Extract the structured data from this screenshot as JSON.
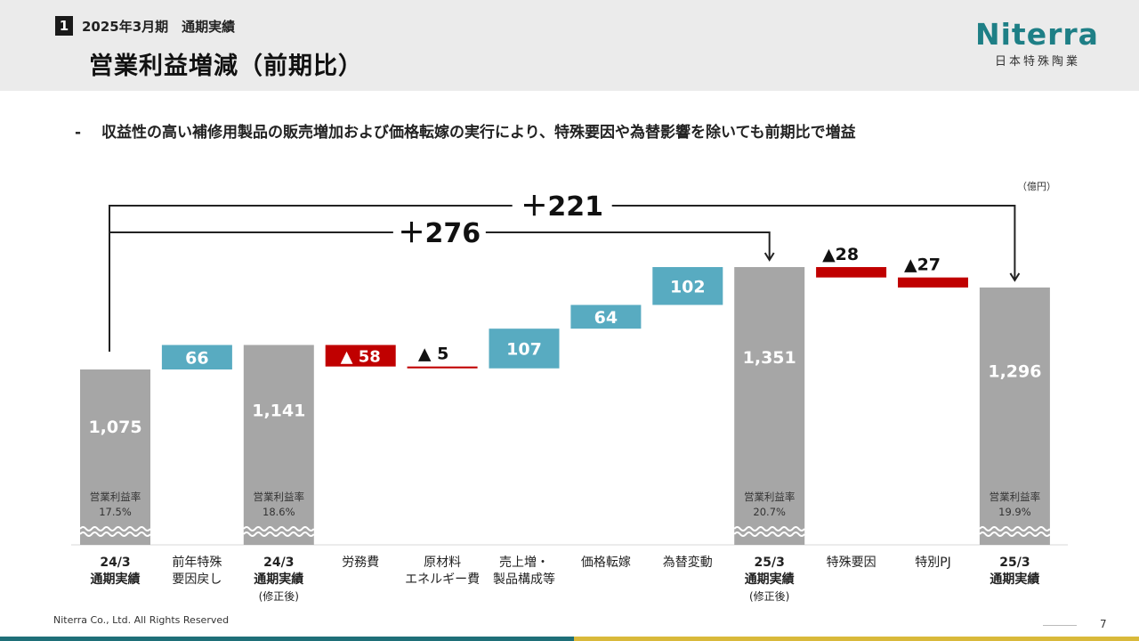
{
  "header": {
    "section_number": "1",
    "section_title": "2025年3月期　通期実績",
    "page_title": "営業利益増減（前期比）",
    "logo_text": "Niterra",
    "logo_subtext": "日本特殊陶業"
  },
  "bullet": {
    "marker": "-",
    "text": "収益性の高い補修用製品の販売増加および価格転嫁の実行により、特殊要因や為替影響を除いても前期比で増益"
  },
  "chart_data": {
    "type": "bar",
    "subtype": "waterfall",
    "unit": "（億円）",
    "categories": [
      {
        "lines": [
          "24/3",
          "通期実績"
        ],
        "bold": true
      },
      {
        "lines": [
          "前年特殊",
          "要因戻し"
        ],
        "bold": false
      },
      {
        "lines": [
          "24/3",
          "通期実績",
          "(修正後)"
        ],
        "bold": true
      },
      {
        "lines": [
          "労務費"
        ],
        "bold": false
      },
      {
        "lines": [
          "原材料",
          "エネルギー費"
        ],
        "bold": false
      },
      {
        "lines": [
          "売上増・",
          "製品構成等"
        ],
        "bold": false
      },
      {
        "lines": [
          "価格転嫁"
        ],
        "bold": false
      },
      {
        "lines": [
          "為替変動"
        ],
        "bold": false
      },
      {
        "lines": [
          "25/3",
          "通期実績",
          "(修正後)"
        ],
        "bold": true
      },
      {
        "lines": [
          "特殊要因"
        ],
        "bold": false
      },
      {
        "lines": [
          "特別PJ"
        ],
        "bold": false
      },
      {
        "lines": [
          "25/3",
          "通期実績"
        ],
        "bold": true
      }
    ],
    "bars": [
      {
        "kind": "total",
        "value": 1075,
        "label": "1,075",
        "margin_title": "営業利益率",
        "margin_value": "17.5%"
      },
      {
        "kind": "increase",
        "value": 66,
        "label": "66"
      },
      {
        "kind": "total",
        "value": 1141,
        "label": "1,141",
        "margin_title": "営業利益率",
        "margin_value": "18.6%"
      },
      {
        "kind": "decrease",
        "value": 58,
        "label": "▲ 58",
        "label_pos": "inside"
      },
      {
        "kind": "decrease",
        "value": 5,
        "label": "▲ 5",
        "label_pos": "above"
      },
      {
        "kind": "increase",
        "value": 107,
        "label": "107"
      },
      {
        "kind": "increase",
        "value": 64,
        "label": "64"
      },
      {
        "kind": "increase",
        "value": 102,
        "label": "102"
      },
      {
        "kind": "total",
        "value": 1351,
        "label": "1,351",
        "margin_title": "営業利益率",
        "margin_value": "20.7%"
      },
      {
        "kind": "decrease",
        "value": 28,
        "label": "▲28",
        "label_pos": "above"
      },
      {
        "kind": "decrease",
        "value": 27,
        "label": "▲27",
        "label_pos": "above"
      },
      {
        "kind": "total",
        "value": 1296,
        "label": "1,296",
        "margin_title": "営業利益率",
        "margin_value": "19.9%"
      }
    ],
    "brackets": [
      {
        "label": "＋221",
        "from_index": 0,
        "to_index": 11
      },
      {
        "label": "＋276",
        "from_index": 0,
        "to_index": 8
      }
    ],
    "colors": {
      "total": "#a6a6a6",
      "increase": "#58abc1",
      "decrease": "#c00000",
      "axis": "#d9d9d9",
      "bracket": "#222222"
    }
  },
  "footer": {
    "copyright": "Niterra Co., Ltd. All Rights Reserved",
    "page_number": "7"
  }
}
